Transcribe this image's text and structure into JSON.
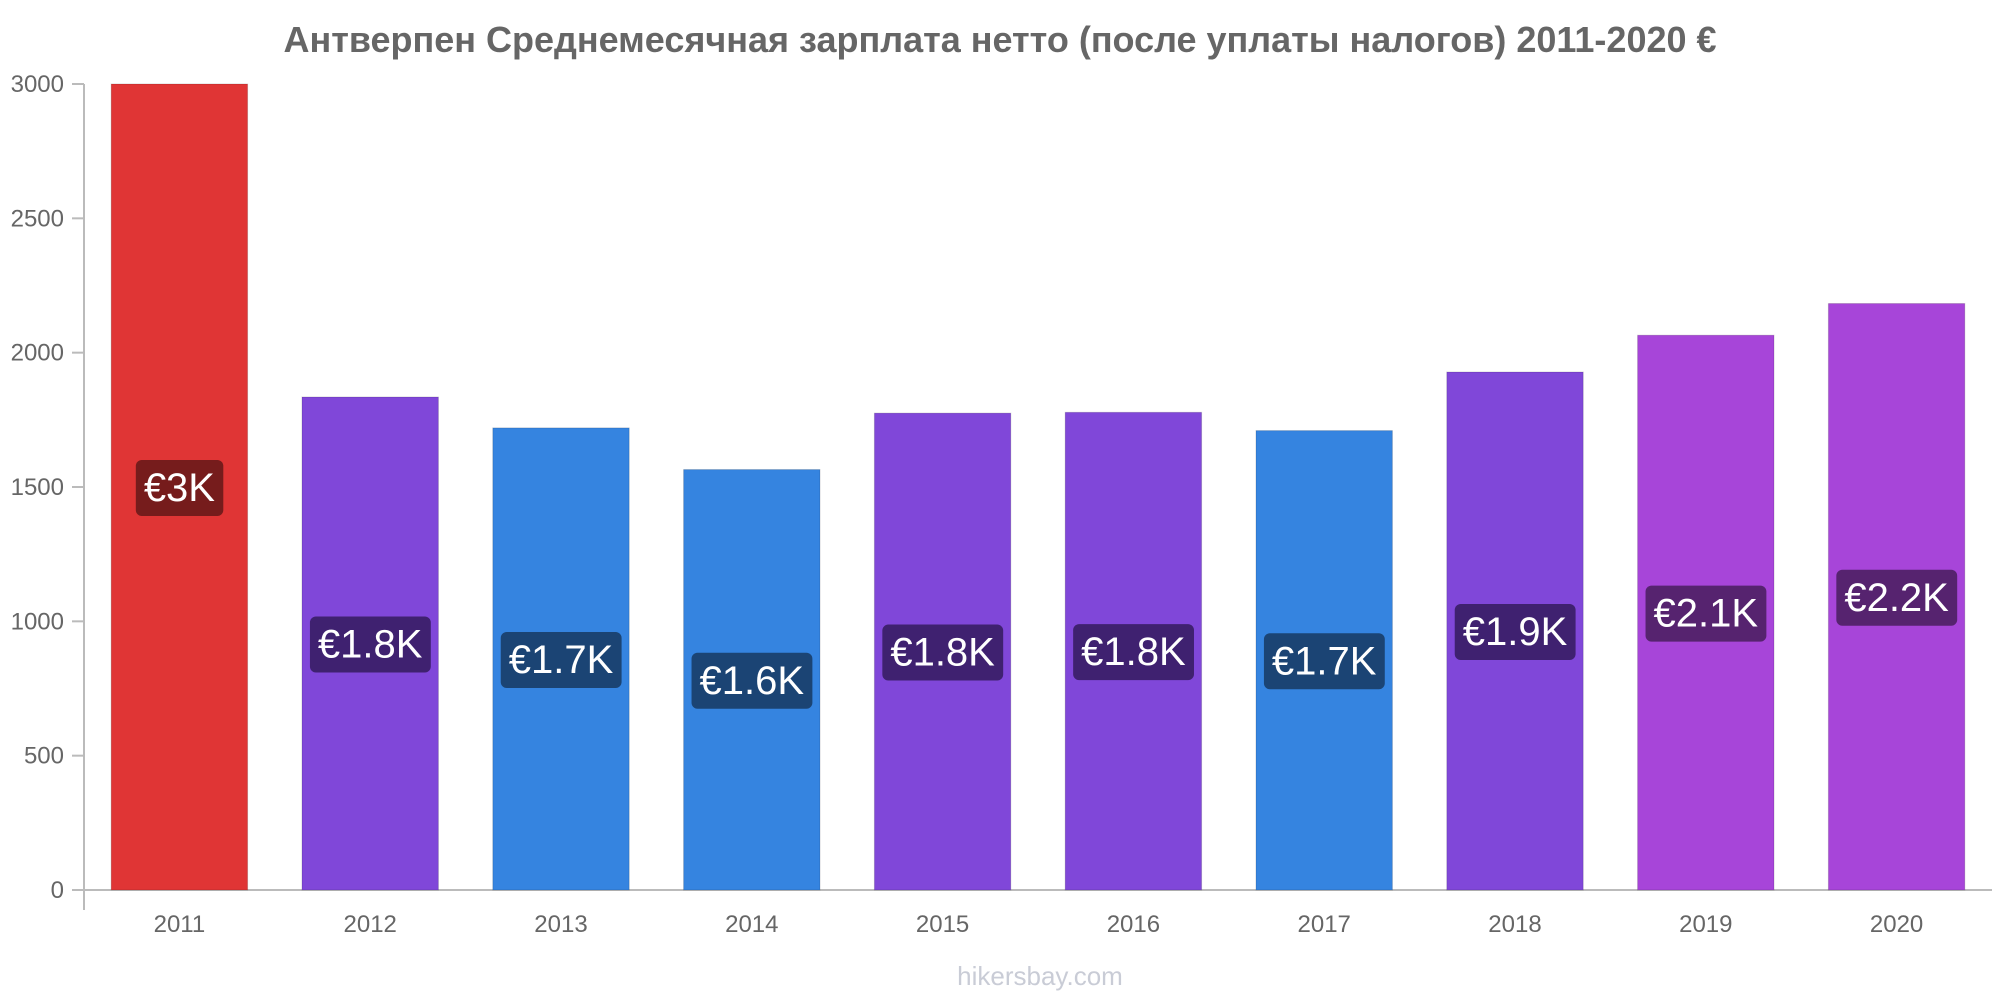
{
  "chart_data": {
    "type": "bar",
    "title": "Антверпен Среднемесячная зарплата нетто (после уплаты налогов) 2011-2020 €",
    "xlabel": "",
    "ylabel": "",
    "categories": [
      "2011",
      "2012",
      "2013",
      "2014",
      "2015",
      "2016",
      "2017",
      "2018",
      "2019",
      "2020"
    ],
    "values": [
      3000,
      1835,
      1720,
      1565,
      1775,
      1778,
      1710,
      1928,
      2065,
      2183
    ],
    "data_labels": [
      "€3K",
      "€1.8K",
      "€1.7K",
      "€1.6K",
      "€1.8K",
      "€1.8K",
      "€1.7K",
      "€1.9K",
      "€2.1K",
      "€2.2K"
    ],
    "bar_colors": [
      "#e03535",
      "#8047d9",
      "#3584e0",
      "#3584e0",
      "#8047d9",
      "#8047d9",
      "#3584e0",
      "#8047d9",
      "#a745d9",
      "#a745d9"
    ],
    "label_bg_colors": [
      "#761c1c",
      "#3f2170",
      "#1b4474",
      "#1b4474",
      "#3f2170",
      "#3f2170",
      "#1b4474",
      "#3f2170",
      "#56236f",
      "#56236f"
    ],
    "ylim": [
      0,
      3000
    ],
    "yticks": [
      0,
      500,
      1000,
      1500,
      2000,
      2500,
      3000
    ],
    "grid": false,
    "legend": "none"
  },
  "watermark": "hikersbay.com"
}
